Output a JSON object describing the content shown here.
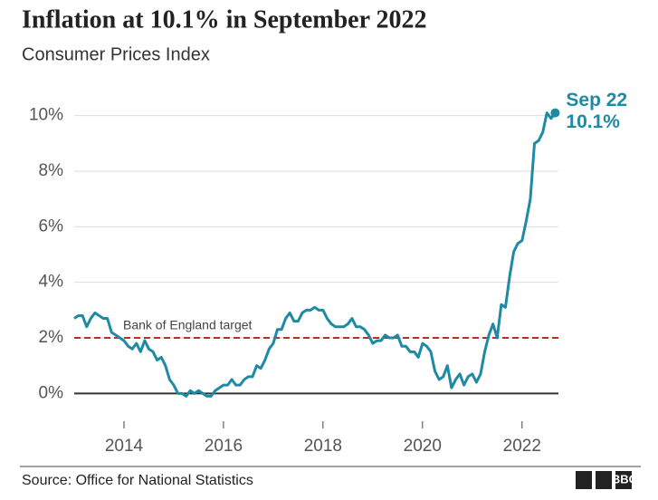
{
  "chart_data": {
    "type": "line",
    "title": "Inflation at 10.1% in September 2022",
    "subtitle": "Consumer Prices Index",
    "source": "Source: Office for National Statistics",
    "logo": "BBC",
    "x": [
      "2013-01",
      "2013-02",
      "2013-03",
      "2013-04",
      "2013-05",
      "2013-06",
      "2013-07",
      "2013-08",
      "2013-09",
      "2013-10",
      "2013-11",
      "2013-12",
      "2014-01",
      "2014-02",
      "2014-03",
      "2014-04",
      "2014-05",
      "2014-06",
      "2014-07",
      "2014-08",
      "2014-09",
      "2014-10",
      "2014-11",
      "2014-12",
      "2015-01",
      "2015-02",
      "2015-03",
      "2015-04",
      "2015-05",
      "2015-06",
      "2015-07",
      "2015-08",
      "2015-09",
      "2015-10",
      "2015-11",
      "2015-12",
      "2016-01",
      "2016-02",
      "2016-03",
      "2016-04",
      "2016-05",
      "2016-06",
      "2016-07",
      "2016-08",
      "2016-09",
      "2016-10",
      "2016-11",
      "2016-12",
      "2017-01",
      "2017-02",
      "2017-03",
      "2017-04",
      "2017-05",
      "2017-06",
      "2017-07",
      "2017-08",
      "2017-09",
      "2017-10",
      "2017-11",
      "2017-12",
      "2018-01",
      "2018-02",
      "2018-03",
      "2018-04",
      "2018-05",
      "2018-06",
      "2018-07",
      "2018-08",
      "2018-09",
      "2018-10",
      "2018-11",
      "2018-12",
      "2019-01",
      "2019-02",
      "2019-03",
      "2019-04",
      "2019-05",
      "2019-06",
      "2019-07",
      "2019-08",
      "2019-09",
      "2019-10",
      "2019-11",
      "2019-12",
      "2020-01",
      "2020-02",
      "2020-03",
      "2020-04",
      "2020-05",
      "2020-06",
      "2020-07",
      "2020-08",
      "2020-09",
      "2020-10",
      "2020-11",
      "2020-12",
      "2021-01",
      "2021-02",
      "2021-03",
      "2021-04",
      "2021-05",
      "2021-06",
      "2021-07",
      "2021-08",
      "2021-09",
      "2021-10",
      "2021-11",
      "2021-12",
      "2022-01",
      "2022-02",
      "2022-03",
      "2022-04",
      "2022-05",
      "2022-06",
      "2022-07",
      "2022-08",
      "2022-09"
    ],
    "series": [
      {
        "name": "CPI",
        "color": "#1e8aa3",
        "values": [
          2.7,
          2.8,
          2.8,
          2.4,
          2.7,
          2.9,
          2.8,
          2.7,
          2.7,
          2.2,
          2.1,
          2.0,
          1.9,
          1.7,
          1.6,
          1.8,
          1.5,
          1.9,
          1.6,
          1.5,
          1.2,
          1.3,
          1.0,
          0.5,
          0.3,
          0.0,
          0.0,
          -0.1,
          0.1,
          0.0,
          0.1,
          0.0,
          -0.1,
          -0.1,
          0.1,
          0.2,
          0.3,
          0.3,
          0.5,
          0.3,
          0.3,
          0.5,
          0.6,
          0.6,
          1.0,
          0.9,
          1.2,
          1.6,
          1.8,
          2.3,
          2.3,
          2.7,
          2.9,
          2.6,
          2.6,
          2.9,
          3.0,
          3.0,
          3.1,
          3.0,
          3.0,
          2.7,
          2.5,
          2.4,
          2.4,
          2.4,
          2.5,
          2.7,
          2.4,
          2.4,
          2.3,
          2.1,
          1.8,
          1.9,
          1.9,
          2.1,
          2.0,
          2.0,
          2.1,
          1.7,
          1.7,
          1.5,
          1.5,
          1.3,
          1.8,
          1.7,
          1.5,
          0.8,
          0.5,
          0.6,
          1.0,
          0.2,
          0.5,
          0.7,
          0.3,
          0.6,
          0.7,
          0.4,
          0.7,
          1.5,
          2.1,
          2.5,
          2.0,
          3.2,
          3.1,
          4.2,
          5.1,
          5.4,
          5.5,
          6.2,
          7.0,
          9.0,
          9.1,
          9.4,
          10.1,
          9.9,
          10.1
        ]
      }
    ],
    "end_label": "Sep 22",
    "end_value_label": "10.1%",
    "target": 2,
    "target_label": "Bank of England target",
    "target_color": "#b5302a",
    "xlim": [
      "2013-01",
      "2022-10"
    ],
    "xticks": [
      2014,
      2016,
      2018,
      2020,
      2022
    ],
    "ylim": [
      -1,
      11
    ],
    "yticks": [
      {
        "value": 0,
        "label": "0%"
      },
      {
        "value": 2,
        "label": "2%"
      },
      {
        "value": 4,
        "label": "4%"
      },
      {
        "value": 6,
        "label": "6%"
      },
      {
        "value": 8,
        "label": "8%"
      },
      {
        "value": 10,
        "label": "10%"
      }
    ],
    "grid": true
  }
}
